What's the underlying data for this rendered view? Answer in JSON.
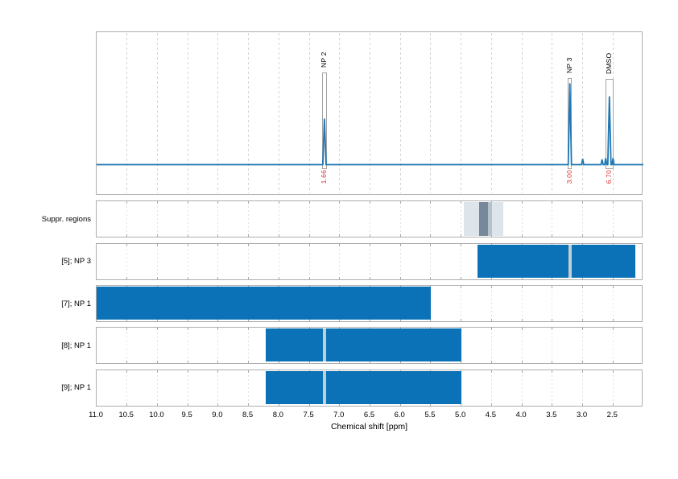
{
  "colors": {
    "bar_blue": "#0b72b7",
    "spectrum_blue": "#1f77b4",
    "integral_red": "#e03131",
    "frame_border": "#aeaeae",
    "peak_box_border": "#a4a4a4",
    "bar_marker_gap": "#c2ced6",
    "grid_main": "#d4d4d4",
    "grid_track": "#e0e0e0",
    "tick_stub": "#a6a6a6"
  },
  "chart_data": {
    "type": "line",
    "xlabel": "Chemical shift [ppm]",
    "x_axis_reversed": true,
    "xlim": [
      11.0,
      2.0
    ],
    "x_ticks": [
      "11.0",
      "10.5",
      "10.0",
      "9.5",
      "9.0",
      "8.5",
      "8.0",
      "7.5",
      "7.0",
      "6.5",
      "6.0",
      "5.5",
      "5.0",
      "4.5",
      "4.0",
      "3.5",
      "3.0",
      "2.5"
    ],
    "spectrum": {
      "baseline_rel": 0.81,
      "peaks": [
        {
          "label": "NP 2",
          "ppm": 7.25,
          "integral": "1.66",
          "rel_intensity": 0.35,
          "region_width_ppm": 0.09
        },
        {
          "label": "NP 3",
          "ppm": 3.21,
          "integral": "3.00",
          "rel_intensity": 0.62,
          "region_width_ppm": 0.07
        },
        {
          "label": "DMSO",
          "ppm": 2.56,
          "integral": "6.70",
          "rel_intensity": 0.52,
          "region_width_ppm": 0.13
        }
      ],
      "minor_peaks": [
        {
          "ppm": 3.0,
          "rel_intensity": 0.045
        },
        {
          "ppm": 2.68,
          "rel_intensity": 0.04
        },
        {
          "ppm": 2.62,
          "rel_intensity": 0.05
        },
        {
          "ppm": 2.5,
          "rel_intensity": 0.05
        }
      ]
    },
    "tracks": [
      {
        "label": "Suppr. regions",
        "type": "regions",
        "regions": [
          {
            "from": 4.96,
            "to": 4.31,
            "color": "#dde4ea"
          },
          {
            "from": 4.71,
            "to": 4.56,
            "color": "#76889a"
          },
          {
            "from": 4.56,
            "to": 4.49,
            "color": "#b4c2cc"
          }
        ]
      },
      {
        "label": "[5]; NP 3",
        "type": "bars",
        "bars": [
          {
            "from": 4.73,
            "to": 2.13,
            "marker": 3.21
          }
        ]
      },
      {
        "label": "[7]; NP 1",
        "type": "bars",
        "bars": [
          {
            "from": 11.0,
            "to": 5.5
          }
        ]
      },
      {
        "label": "[8]; NP 1",
        "type": "bars",
        "bars": [
          {
            "from": 8.21,
            "to": 4.99,
            "marker": 7.25
          }
        ]
      },
      {
        "label": "[9]; NP 1",
        "type": "bars",
        "bars": [
          {
            "from": 8.21,
            "to": 4.99,
            "marker": 7.25
          }
        ]
      }
    ]
  }
}
